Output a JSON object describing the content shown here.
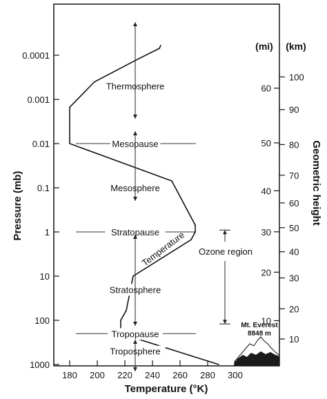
{
  "chart_data": {
    "type": "line",
    "xlabel": "Temperature (°K)",
    "ylabel": "Pressure (mb)",
    "right_axis_label": "Geometric height",
    "x_ticks": [
      180,
      200,
      220,
      240,
      260,
      280,
      300
    ],
    "x_range": [
      170,
      310
    ],
    "y_scale": "log",
    "y_range_mb": [
      1000,
      2e-05
    ],
    "y_ticks": [
      {
        "value": 0.0001,
        "label": "0.0001"
      },
      {
        "value": 0.001,
        "label": "0.001"
      },
      {
        "value": 0.01,
        "label": "0.01"
      },
      {
        "value": 0.1,
        "label": "0.1"
      },
      {
        "value": 1,
        "label": "1"
      },
      {
        "value": 10,
        "label": "10"
      },
      {
        "value": 100,
        "label": "100"
      },
      {
        "value": 1000,
        "label": "1000"
      }
    ],
    "mi_unit_label": "(mi)",
    "km_unit_label": "(km)",
    "mi_ticks": [
      {
        "km": 16.09,
        "label": "10"
      },
      {
        "km": 32.19,
        "label": "20"
      },
      {
        "km": 48.28,
        "label": "30"
      },
      {
        "km": 64.37,
        "label": "40"
      },
      {
        "km": 80.47,
        "label": "50"
      },
      {
        "km": 96.56,
        "label": "60"
      }
    ],
    "km_ticks": [
      {
        "km": 10,
        "label": "10"
      },
      {
        "km": 20,
        "label": "20"
      },
      {
        "km": 30,
        "label": "30"
      },
      {
        "km": 40,
        "label": "40"
      },
      {
        "km": 50,
        "label": "50"
      },
      {
        "km": 60,
        "label": "60"
      },
      {
        "km": 70,
        "label": "70"
      },
      {
        "km": 80,
        "label": "80"
      },
      {
        "km": 90,
        "label": "90"
      },
      {
        "km": 100,
        "label": "100"
      }
    ],
    "km_calibration": [
      {
        "km": 0,
        "mb": 1000
      },
      {
        "km": 10,
        "mb": 265
      },
      {
        "km": 20,
        "mb": 55
      },
      {
        "km": 30,
        "mb": 11
      },
      {
        "km": 40,
        "mb": 2.8
      },
      {
        "km": 50,
        "mb": 0.8
      },
      {
        "km": 60,
        "mb": 0.22
      },
      {
        "km": 70,
        "mb": 0.052
      },
      {
        "km": 80,
        "mb": 0.0105
      },
      {
        "km": 90,
        "mb": 0.0017
      },
      {
        "km": 100,
        "mb": 0.00031
      }
    ],
    "series": [
      {
        "name": "Temperature",
        "points": [
          {
            "t": 288,
            "p": 1000
          },
          {
            "t": 217,
            "p": 200
          },
          {
            "t": 217,
            "p": 100
          },
          {
            "t": 221,
            "p": 60
          },
          {
            "t": 226,
            "p": 10
          },
          {
            "t": 268,
            "p": 1.5
          },
          {
            "t": 271,
            "p": 1
          },
          {
            "t": 271,
            "p": 0.7
          },
          {
            "t": 254,
            "p": 0.07
          },
          {
            "t": 180,
            "p": 0.01
          },
          {
            "t": 180,
            "p": 0.0015
          },
          {
            "t": 198,
            "p": 0.0004
          },
          {
            "t": 230,
            "p": 0.00012
          },
          {
            "t": 245,
            "p": 7e-05
          },
          {
            "t": 246,
            "p": 6e-05
          }
        ]
      }
    ],
    "layers": [
      {
        "name": "Thermosphere",
        "p": 0.0005
      },
      {
        "name": "Mesosphere",
        "p": 0.1
      },
      {
        "name": "Stratosphere",
        "p": 20
      },
      {
        "name": "Troposphere",
        "p": 500
      }
    ],
    "boundaries": [
      {
        "name": "Mesopause",
        "p": 0.01
      },
      {
        "name": "Stratopause",
        "p": 1
      },
      {
        "name": "Tropopause",
        "p": 200
      }
    ],
    "annotations": {
      "curve_label": "Temperature",
      "ozone_region": "Ozone region",
      "ozone_top_km": 49,
      "ozone_bottom_km": 15,
      "everest_name": "Mt. Everest",
      "everest_height": "8848 m"
    }
  }
}
